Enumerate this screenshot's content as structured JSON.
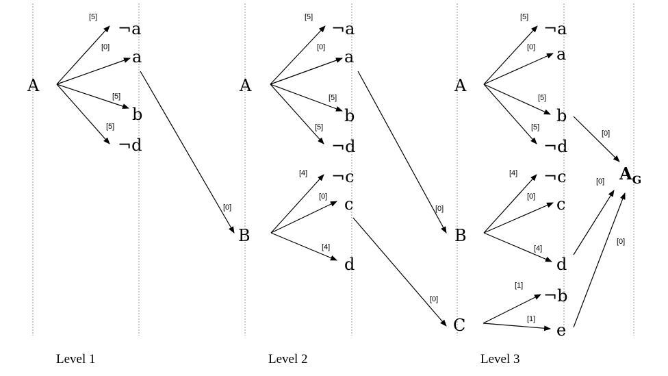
{
  "levels": [
    "Level 1",
    "Level 2",
    "Level 3"
  ],
  "level1": {
    "root": "A",
    "children": [
      "¬a",
      "a",
      "b",
      "¬d"
    ],
    "costs": [
      "[5]",
      "[0]",
      "[5]",
      "[5]"
    ]
  },
  "level2": {
    "root_a": "A",
    "children_a": [
      "¬a",
      "a",
      "b",
      "¬d"
    ],
    "costs_a": [
      "[5]",
      "[0]",
      "[5]",
      "[5]"
    ],
    "root_b": "B",
    "children_b": [
      "¬c",
      "c",
      "d"
    ],
    "costs_b": [
      "[4]",
      "[0]",
      "[4]"
    ]
  },
  "level3": {
    "root_a": "A",
    "children_a": [
      "¬a",
      "a",
      "b",
      "¬d"
    ],
    "costs_a": [
      "[5]",
      "[0]",
      "[5]",
      "[5]"
    ],
    "root_b": "B",
    "children_b": [
      "¬c",
      "c",
      "d"
    ],
    "costs_b": [
      "[4]",
      "[0]",
      "[4]"
    ],
    "root_c": "C",
    "children_c": [
      "¬b",
      "e"
    ],
    "costs_c": [
      "[1]",
      "[1]"
    ]
  },
  "cross_costs": {
    "l1_a_to_b": "[0]",
    "l2_a_to_b": "[0]",
    "l2_c_to_c": "[0]",
    "l3_b_to_goal": "[0]",
    "l3_d_to_goal": "[0]",
    "l3_e_to_goal": "[0]"
  },
  "goal": {
    "label": "A",
    "subscript": "G"
  }
}
